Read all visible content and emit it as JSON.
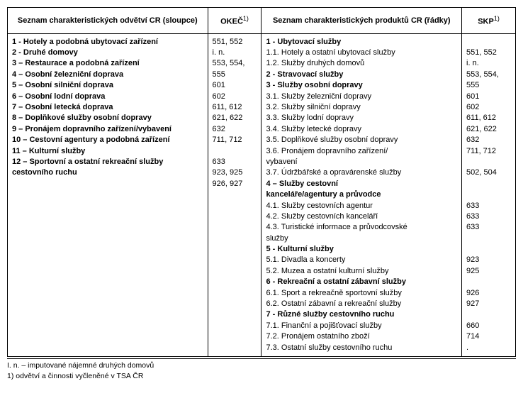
{
  "headers": {
    "industries": "Seznam charakteristických odvětví CR (sloupce)",
    "okec": "OKEČ",
    "okec_sup": "1)",
    "products": "Seznam charakteristických produktů CR (řádky)",
    "skp": "SKP",
    "skp_sup": "1)"
  },
  "industries_rows": [
    {
      "label": "1 - Hotely a podobná ubytovací zařízení",
      "bold": true,
      "code": "551, 552"
    },
    {
      "label": "2 - Druhé domovy",
      "bold": true,
      "code": "i. n."
    },
    {
      "label": "3 – Restaurace a podobná zařízení",
      "bold": true,
      "code": "553, 554,"
    },
    {
      "label": "4 – Osobní železniční doprava",
      "bold": true,
      "code": "555"
    },
    {
      "label": "5 – Osobní silniční doprava",
      "bold": true,
      "code": "601"
    },
    {
      "label": "6 – Osobní lodní doprava",
      "bold": true,
      "code": "602"
    },
    {
      "label": "7 – Osobní letecká doprava",
      "bold": true,
      "code": "611, 612"
    },
    {
      "label": "8 – Doplňkové služby osobní dopravy",
      "bold": true,
      "code": "621, 622"
    },
    {
      "label": "9 – Pronájem dopravního zařízení/vybavení",
      "bold": true,
      "code": "632"
    },
    {
      "label": "10 – Cestovní agentury a podobná zařízení",
      "bold": true,
      "code": "711, 712"
    },
    {
      "label": "11 – Kulturní služby",
      "bold": true,
      "code": ""
    },
    {
      "label": "12 – Sportovní a ostatní rekreační služby",
      "bold": true,
      "code": "633"
    },
    {
      "label": "cestovního ruchu",
      "bold": true,
      "code": "923, 925"
    },
    {
      "label": "",
      "bold": false,
      "code": "926, 927"
    }
  ],
  "products_rows": [
    {
      "label": "1 - Ubytovací služby",
      "bold": true,
      "code": ""
    },
    {
      "label": "1.1. Hotely a ostatní ubytovací služby",
      "bold": false,
      "code": "551, 552"
    },
    {
      "label": "1.2. Služby druhých domovů",
      "bold": false,
      "code": "i. n."
    },
    {
      "label": "2 - Stravovací služby",
      "bold": true,
      "code": "553, 554,"
    },
    {
      "label": "3 - Služby osobní dopravy",
      "bold": true,
      "code": "555"
    },
    {
      "label": "3.1. Služby železniční dopravy",
      "bold": false,
      "code": "601"
    },
    {
      "label": "3.2. Služby silniční dopravy",
      "bold": false,
      "code": "602"
    },
    {
      "label": "3.3. Služby lodní dopravy",
      "bold": false,
      "code": "611, 612"
    },
    {
      "label": "3.4. Služby letecké dopravy",
      "bold": false,
      "code": "621, 622"
    },
    {
      "label": "3.5. Doplňkové služby osobní  dopravy",
      "bold": false,
      "code": "632"
    },
    {
      "label": "3.6. Pronájem dopravního zařízení/",
      "bold": false,
      "code": "711, 712"
    },
    {
      "label": "vybavení",
      "bold": false,
      "code": ""
    },
    {
      "label": "3.7. Údržbářské a opravárenské služby",
      "bold": false,
      "code": "502, 504"
    },
    {
      "label": "4 – Služby cestovní",
      "bold": true,
      "code": ""
    },
    {
      "label": "kanceláře/agentury a průvodce",
      "bold": true,
      "code": ""
    },
    {
      "label": "4.1. Služby cestovních agentur",
      "bold": false,
      "code": "633"
    },
    {
      "label": "4.2. Služby cestovních kanceláří",
      "bold": false,
      "code": "633"
    },
    {
      "label": "4.3. Turistické informace a průvodcovské",
      "bold": false,
      "code": "633"
    },
    {
      "label": "služby",
      "bold": false,
      "code": ""
    },
    {
      "label": "5 - Kulturní služby",
      "bold": true,
      "code": ""
    },
    {
      "label": "5.1. Divadla a koncerty",
      "bold": false,
      "code": "923"
    },
    {
      "label": "5.2. Muzea a ostatní kulturní služby",
      "bold": false,
      "code": "925"
    },
    {
      "label": "6 - Rekreační a ostatní zábavní služby",
      "bold": true,
      "code": ""
    },
    {
      "label": "6.1. Sport a rekreačně sportovní služby",
      "bold": false,
      "code": "926"
    },
    {
      "label": "6.2. Ostatní zábavní a rekreační služby",
      "bold": false,
      "code": "927"
    },
    {
      "label": "7 - Různé služby cestovního ruchu",
      "bold": true,
      "code": ""
    },
    {
      "label": "7.1. Finanční a pojišťovací služby",
      "bold": false,
      "code": "660"
    },
    {
      "label": "7.2. Pronájem ostatního zboží",
      "bold": false,
      "code": "714"
    },
    {
      "label": "7.3. Ostatní služby cestovního ruchu",
      "bold": false,
      "code": "."
    }
  ],
  "footnotes": [
    "I. n. – imputované nájemné druhých domovů",
    "1) odvětví a činnosti vyčleněné v TSA ČR"
  ]
}
